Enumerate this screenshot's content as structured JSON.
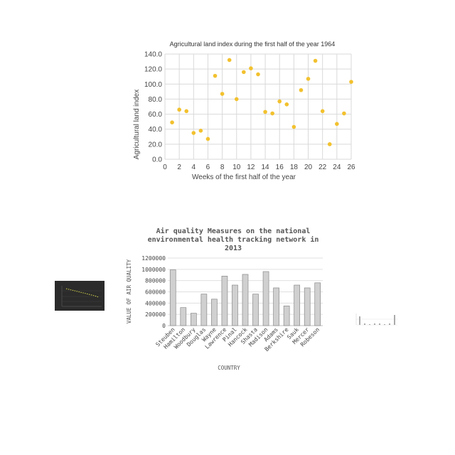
{
  "chart_data": [
    {
      "type": "scatter",
      "title": "Agricultural land index during the first half of the year 1964",
      "xlabel": "Weeks of the first half of the year",
      "ylabel": "Agricultural land index",
      "xlim": [
        0,
        26
      ],
      "ylim": [
        0,
        140
      ],
      "xticks": [
        "0",
        "2",
        "4",
        "6",
        "8",
        "10",
        "12",
        "14",
        "16",
        "18",
        "20",
        "22",
        "24",
        "26"
      ],
      "yticks": [
        "0.0",
        "20.0",
        "40.0",
        "60.0",
        "80.0",
        "100.0",
        "120.0",
        "140.0"
      ],
      "grid": true,
      "color": "#f2c12e",
      "x": [
        1,
        2,
        3,
        4,
        5,
        6,
        7,
        8,
        9,
        10,
        11,
        12,
        13,
        14,
        15,
        16,
        17,
        18,
        19,
        20,
        21,
        22,
        23,
        24,
        25,
        26
      ],
      "y": [
        49,
        66,
        64,
        35,
        38,
        27,
        111,
        87,
        132,
        80,
        116,
        121,
        113,
        63,
        61,
        77,
        73,
        43,
        92,
        107,
        131,
        64,
        20,
        47,
        61,
        103
      ]
    },
    {
      "type": "bar",
      "title_lines": [
        "Air quality Measures on the national",
        "environmental health tracking network in",
        "2013"
      ],
      "xlabel": "COUNTRY",
      "ylabel": "VALUE OF  AIR QUALITY",
      "ylim": [
        0,
        1200000
      ],
      "yticks": [
        "0",
        "200000",
        "400000",
        "600000",
        "800000",
        "1000000",
        "1200000"
      ],
      "categories": [
        "Steuben",
        "Hamilton",
        "Woodbury",
        "Douglas",
        "Wayne",
        "Lawrence",
        "Pinal",
        "Hancock",
        "Shasta",
        "Madison",
        "Adams",
        "Berkshire",
        "Sauk",
        "Mercer",
        "Robeson"
      ],
      "values": [
        990000,
        320000,
        220000,
        560000,
        470000,
        880000,
        720000,
        910000,
        560000,
        960000,
        670000,
        350000,
        720000,
        670000,
        760000
      ],
      "bar_color": "#d0d0d0",
      "bar_edge": "#8a8a8a"
    }
  ]
}
